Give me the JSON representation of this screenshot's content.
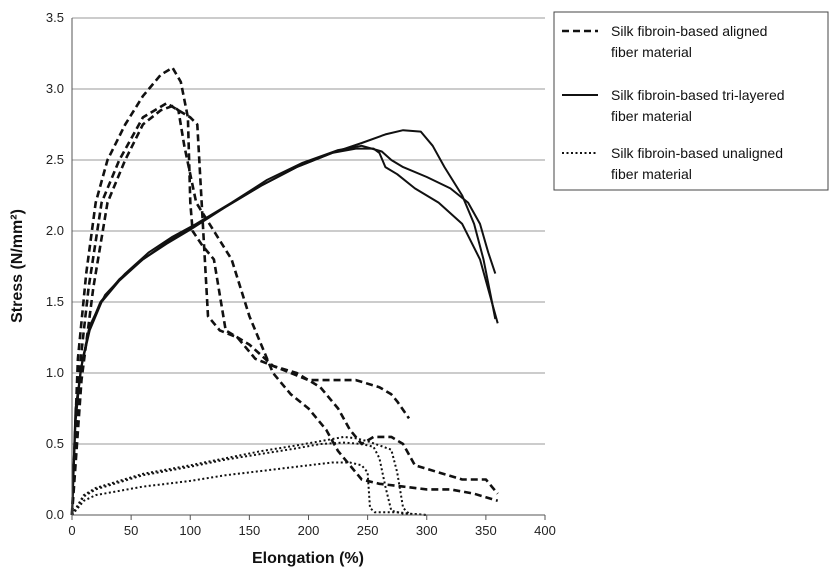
{
  "chart_data": {
    "type": "line",
    "xlabel": "Elongation (%)",
    "ylabel": "Stress (N/mm²)",
    "xlim": [
      0,
      400
    ],
    "ylim": [
      0,
      3.5
    ],
    "xticks": [
      "0",
      "50",
      "100",
      "150",
      "200",
      "250",
      "300",
      "350",
      "400"
    ],
    "yticks": [
      "0.0",
      "0.5",
      "1.0",
      "1.5",
      "2.0",
      "2.5",
      "3.0",
      "3.5"
    ],
    "grid": "horizontal",
    "legend_position": "top-right",
    "legend": [
      {
        "style": "dashed",
        "lines": [
          "Silk fibroin-based aligned",
          "fiber material"
        ]
      },
      {
        "style": "solid",
        "lines": [
          "Silk fibroin-based tri-layered",
          "fiber material"
        ]
      },
      {
        "style": "dotted",
        "lines": [
          "Silk fibroin-based unaligned",
          "fiber material"
        ]
      }
    ],
    "series": [
      {
        "style": "dashed",
        "points": [
          [
            0,
            0
          ],
          [
            5,
            1.1
          ],
          [
            12,
            1.7
          ],
          [
            20,
            2.2
          ],
          [
            30,
            2.5
          ],
          [
            45,
            2.75
          ],
          [
            60,
            2.95
          ],
          [
            75,
            3.1
          ],
          [
            85,
            3.15
          ],
          [
            92,
            3.05
          ],
          [
            98,
            2.8
          ],
          [
            100,
            2.2
          ],
          [
            102,
            2.0
          ],
          [
            110,
            1.9
          ],
          [
            120,
            1.8
          ],
          [
            130,
            1.3
          ],
          [
            150,
            1.2
          ],
          [
            170,
            1.05
          ],
          [
            200,
            0.95
          ],
          [
            220,
            0.95
          ],
          [
            240,
            0.95
          ],
          [
            260,
            0.9
          ],
          [
            270,
            0.85
          ],
          [
            275,
            0.8
          ],
          [
            285,
            0.68
          ]
        ]
      },
      {
        "style": "dashed",
        "points": [
          [
            0,
            0
          ],
          [
            6,
            1.0
          ],
          [
            14,
            1.6
          ],
          [
            25,
            2.2
          ],
          [
            40,
            2.5
          ],
          [
            60,
            2.8
          ],
          [
            80,
            2.9
          ],
          [
            90,
            2.85
          ],
          [
            100,
            2.8
          ],
          [
            106,
            2.75
          ],
          [
            115,
            1.4
          ],
          [
            125,
            1.3
          ],
          [
            140,
            1.25
          ],
          [
            155,
            1.1
          ],
          [
            170,
            1.05
          ],
          [
            190,
            1.0
          ],
          [
            210,
            0.9
          ],
          [
            225,
            0.75
          ],
          [
            235,
            0.6
          ],
          [
            245,
            0.5
          ],
          [
            255,
            0.55
          ],
          [
            270,
            0.55
          ],
          [
            280,
            0.5
          ],
          [
            290,
            0.35
          ],
          [
            310,
            0.3
          ],
          [
            330,
            0.25
          ],
          [
            350,
            0.25
          ],
          [
            360,
            0.15
          ]
        ]
      },
      {
        "style": "dashed",
        "points": [
          [
            0,
            0
          ],
          [
            8,
            0.95
          ],
          [
            18,
            1.6
          ],
          [
            30,
            2.2
          ],
          [
            45,
            2.5
          ],
          [
            60,
            2.75
          ],
          [
            75,
            2.85
          ],
          [
            85,
            2.88
          ],
          [
            90,
            2.85
          ],
          [
            95,
            2.6
          ],
          [
            105,
            2.2
          ],
          [
            120,
            2.0
          ],
          [
            135,
            1.8
          ],
          [
            150,
            1.4
          ],
          [
            160,
            1.2
          ],
          [
            170,
            1.0
          ],
          [
            185,
            0.85
          ],
          [
            200,
            0.75
          ],
          [
            215,
            0.6
          ],
          [
            225,
            0.45
          ],
          [
            235,
            0.35
          ],
          [
            245,
            0.25
          ],
          [
            260,
            0.22
          ],
          [
            280,
            0.2
          ],
          [
            300,
            0.18
          ],
          [
            320,
            0.18
          ],
          [
            340,
            0.15
          ],
          [
            360,
            0.1
          ]
        ]
      },
      {
        "style": "solid",
        "points": [
          [
            0,
            0
          ],
          [
            3,
            0.7
          ],
          [
            8,
            1.05
          ],
          [
            15,
            1.3
          ],
          [
            25,
            1.5
          ],
          [
            40,
            1.65
          ],
          [
            60,
            1.8
          ],
          [
            80,
            1.92
          ],
          [
            100,
            2.02
          ],
          [
            130,
            2.17
          ],
          [
            160,
            2.32
          ],
          [
            190,
            2.45
          ],
          [
            220,
            2.55
          ],
          [
            240,
            2.58
          ],
          [
            255,
            2.58
          ],
          [
            260,
            2.55
          ],
          [
            265,
            2.45
          ],
          [
            275,
            2.4
          ],
          [
            290,
            2.3
          ],
          [
            310,
            2.2
          ],
          [
            330,
            2.05
          ],
          [
            345,
            1.8
          ],
          [
            355,
            1.5
          ],
          [
            360,
            1.35
          ]
        ]
      },
      {
        "style": "solid",
        "points": [
          [
            0,
            0
          ],
          [
            3,
            0.75
          ],
          [
            9,
            1.1
          ],
          [
            16,
            1.35
          ],
          [
            28,
            1.55
          ],
          [
            45,
            1.7
          ],
          [
            65,
            1.85
          ],
          [
            85,
            1.96
          ],
          [
            105,
            2.05
          ],
          [
            135,
            2.2
          ],
          [
            165,
            2.36
          ],
          [
            195,
            2.48
          ],
          [
            225,
            2.57
          ],
          [
            245,
            2.6
          ],
          [
            258,
            2.57
          ],
          [
            262,
            2.56
          ],
          [
            270,
            2.5
          ],
          [
            280,
            2.45
          ],
          [
            300,
            2.38
          ],
          [
            320,
            2.3
          ],
          [
            335,
            2.2
          ],
          [
            345,
            2.05
          ],
          [
            352,
            1.85
          ],
          [
            358,
            1.7
          ]
        ]
      },
      {
        "style": "solid",
        "points": [
          [
            0,
            0
          ],
          [
            3,
            0.65
          ],
          [
            7,
            1.0
          ],
          [
            14,
            1.3
          ],
          [
            24,
            1.5
          ],
          [
            40,
            1.66
          ],
          [
            60,
            1.8
          ],
          [
            80,
            1.91
          ],
          [
            100,
            2.01
          ],
          [
            130,
            2.17
          ],
          [
            160,
            2.32
          ],
          [
            190,
            2.45
          ],
          [
            220,
            2.55
          ],
          [
            245,
            2.62
          ],
          [
            265,
            2.68
          ],
          [
            280,
            2.71
          ],
          [
            295,
            2.7
          ],
          [
            305,
            2.6
          ],
          [
            315,
            2.45
          ],
          [
            330,
            2.25
          ],
          [
            340,
            2.05
          ],
          [
            348,
            1.8
          ],
          [
            354,
            1.55
          ],
          [
            358,
            1.38
          ]
        ]
      },
      {
        "style": "dotted",
        "points": [
          [
            0,
            0
          ],
          [
            10,
            0.13
          ],
          [
            20,
            0.18
          ],
          [
            40,
            0.23
          ],
          [
            60,
            0.28
          ],
          [
            80,
            0.31
          ],
          [
            100,
            0.34
          ],
          [
            130,
            0.39
          ],
          [
            160,
            0.43
          ],
          [
            190,
            0.47
          ],
          [
            210,
            0.5
          ],
          [
            230,
            0.51
          ],
          [
            245,
            0.5
          ],
          [
            255,
            0.48
          ],
          [
            260,
            0.4
          ],
          [
            265,
            0.2
          ],
          [
            270,
            0.03
          ],
          [
            280,
            0.01
          ],
          [
            300,
            0
          ]
        ]
      },
      {
        "style": "dotted",
        "points": [
          [
            0,
            0
          ],
          [
            10,
            0.14
          ],
          [
            20,
            0.19
          ],
          [
            40,
            0.24
          ],
          [
            60,
            0.29
          ],
          [
            80,
            0.32
          ],
          [
            100,
            0.35
          ],
          [
            130,
            0.4
          ],
          [
            160,
            0.45
          ],
          [
            190,
            0.49
          ],
          [
            210,
            0.52
          ],
          [
            230,
            0.55
          ],
          [
            240,
            0.54
          ],
          [
            250,
            0.52
          ],
          [
            260,
            0.49
          ],
          [
            270,
            0.46
          ],
          [
            275,
            0.3
          ],
          [
            280,
            0.05
          ],
          [
            285,
            0.01
          ]
        ]
      },
      {
        "style": "dotted",
        "points": [
          [
            0,
            0
          ],
          [
            10,
            0.1
          ],
          [
            20,
            0.14
          ],
          [
            40,
            0.17
          ],
          [
            60,
            0.2
          ],
          [
            80,
            0.22
          ],
          [
            100,
            0.24
          ],
          [
            130,
            0.28
          ],
          [
            160,
            0.31
          ],
          [
            190,
            0.34
          ],
          [
            220,
            0.37
          ],
          [
            235,
            0.37
          ],
          [
            245,
            0.35
          ],
          [
            250,
            0.3
          ],
          [
            252,
            0.05
          ],
          [
            256,
            0.02
          ],
          [
            265,
            0.02
          ],
          [
            275,
            0.02
          ],
          [
            285,
            0.01
          ],
          [
            300,
            0.0
          ]
        ]
      }
    ]
  }
}
